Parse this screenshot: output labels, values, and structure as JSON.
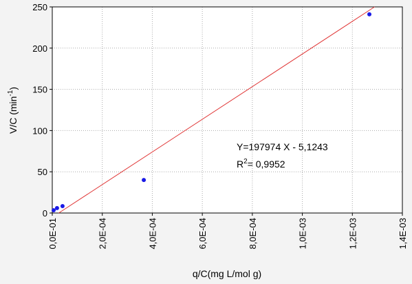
{
  "chart_data": {
    "type": "scatter",
    "x_label": "q/C(mg L/mol g)",
    "y_label": [
      "V/C (min",
      "-1",
      ")"
    ],
    "annotations": [
      [
        "Y=197974 X - 5,1243"
      ],
      [
        "R",
        "2",
        "= 0,9952"
      ]
    ],
    "x": [
      5.5e-06,
      1.9e-05,
      4.1e-05,
      0.000366,
      0.001268
    ],
    "values": [
      3.3,
      6,
      8.4,
      40,
      241
    ],
    "color": "#1a1ae6",
    "fit_line": {
      "x": [
        2.59e-05,
        0.0012886
      ],
      "values": [
        0,
        250
      ],
      "color": "#e03535"
    },
    "xlim": [
      0,
      0.0014
    ],
    "xticks": [
      {
        "value": 0,
        "label": "0,0E-01"
      },
      {
        "value": 0.0002,
        "label": "2,0E-04"
      },
      {
        "value": 0.0004,
        "label": "4,0E-04"
      },
      {
        "value": 0.0006,
        "label": "6,0E-04"
      },
      {
        "value": 0.0008,
        "label": "8,0E-04"
      },
      {
        "value": 0.001,
        "label": "1,0E-03"
      },
      {
        "value": 0.0012,
        "label": "1,2E-03"
      },
      {
        "value": 0.0014,
        "label": "1,4E-03"
      }
    ],
    "ylim": [
      0,
      250
    ],
    "yticks": [
      0,
      50,
      100,
      150,
      200,
      250
    ],
    "grid": true
  }
}
